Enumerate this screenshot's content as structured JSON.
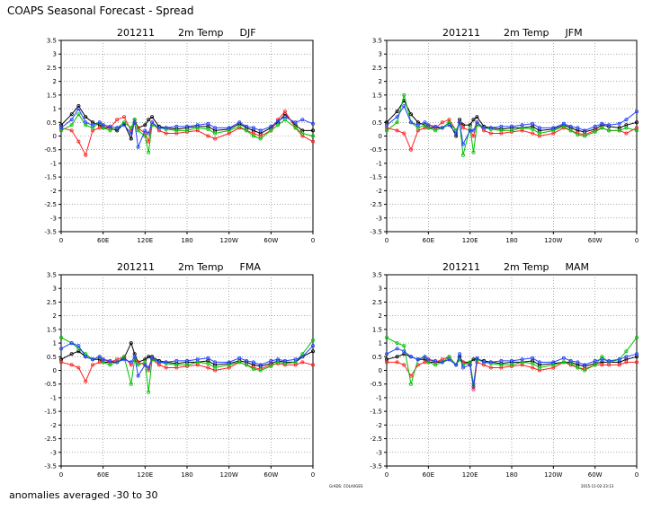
{
  "figure": {
    "title": "COAPS Seasonal Forecast - Spread",
    "footer": "anomalies averaged -30 to 30",
    "credit_left": "GrADS: COLA/IGES",
    "credit_right": "2015-11-02-23:13"
  },
  "chart_data": [
    {
      "type": "line",
      "title_parts": [
        "201211",
        "2m Temp",
        "DJF"
      ],
      "ylim": [
        -3.5,
        3.5
      ],
      "yticks": [
        "3.5",
        "3",
        "2.5",
        "2",
        "1.5",
        "1",
        "0.5",
        "0",
        "-0.5",
        "-1",
        "-1.5",
        "-2",
        "-2.5",
        "-3",
        "-3.5"
      ],
      "xlim": [
        0,
        360
      ],
      "xticks": [
        "0",
        "60E",
        "120E",
        "180",
        "120W",
        "60W",
        "0"
      ],
      "grid": true,
      "x": [
        0,
        15,
        25,
        35,
        45,
        55,
        60,
        70,
        80,
        90,
        100,
        105,
        110,
        120,
        125,
        130,
        140,
        150,
        165,
        180,
        195,
        210,
        220,
        240,
        255,
        265,
        275,
        285,
        300,
        310,
        320,
        335,
        345,
        360
      ],
      "series": [
        {
          "name": "black",
          "color": "#000000",
          "values": [
            0.4,
            0.8,
            1.1,
            0.7,
            0.5,
            0.4,
            0.3,
            0.3,
            0.2,
            0.45,
            -0.1,
            0.6,
            0.3,
            0.4,
            0.6,
            0.7,
            0.35,
            0.3,
            0.25,
            0.3,
            0.35,
            0.35,
            0.2,
            0.25,
            0.45,
            0.3,
            0.2,
            0.1,
            0.3,
            0.5,
            0.8,
            0.4,
            0.2,
            0.2
          ]
        },
        {
          "name": "red",
          "color": "#ff2020",
          "values": [
            0.3,
            0.2,
            -0.2,
            -0.7,
            0.2,
            0.3,
            0.4,
            0.3,
            0.6,
            0.7,
            0.2,
            0.5,
            0.3,
            0.1,
            -0.2,
            0.5,
            0.2,
            0.1,
            0.1,
            0.15,
            0.2,
            0.0,
            -0.1,
            0.1,
            0.3,
            0.2,
            0.1,
            0.0,
            0.2,
            0.6,
            0.9,
            0.3,
            0.0,
            -0.2
          ]
        },
        {
          "name": "green",
          "color": "#00c000",
          "values": [
            0.2,
            0.4,
            0.8,
            0.4,
            0.3,
            0.5,
            0.3,
            0.2,
            0.3,
            0.5,
            0.3,
            0.6,
            0.2,
            0.0,
            -0.6,
            0.4,
            0.3,
            0.25,
            0.2,
            0.2,
            0.3,
            0.25,
            0.1,
            0.2,
            0.35,
            0.2,
            0.0,
            -0.1,
            0.2,
            0.4,
            0.6,
            0.3,
            0.1,
            0.0
          ]
        },
        {
          "name": "blue",
          "color": "#2040ff",
          "values": [
            0.3,
            0.6,
            1.0,
            0.5,
            0.4,
            0.5,
            0.4,
            0.35,
            0.3,
            0.4,
            0.1,
            0.5,
            -0.4,
            0.2,
            0.1,
            0.5,
            0.3,
            0.3,
            0.35,
            0.35,
            0.4,
            0.45,
            0.3,
            0.3,
            0.5,
            0.35,
            0.3,
            0.2,
            0.35,
            0.55,
            0.7,
            0.5,
            0.6,
            0.45
          ]
        }
      ]
    },
    {
      "type": "line",
      "title_parts": [
        "201211",
        "2m Temp",
        "JFM"
      ],
      "ylim": [
        -3.5,
        3.5
      ],
      "yticks": [
        "3.5",
        "3",
        "2.5",
        "2",
        "1.5",
        "1",
        "0.5",
        "0",
        "-0.5",
        "-1",
        "-1.5",
        "-2",
        "-2.5",
        "-3",
        "-3.5"
      ],
      "xlim": [
        0,
        360
      ],
      "xticks": [
        "0",
        "60E",
        "120E",
        "180",
        "120W",
        "60W",
        "0"
      ],
      "grid": true,
      "x": [
        0,
        15,
        25,
        35,
        45,
        55,
        60,
        70,
        80,
        90,
        100,
        105,
        110,
        120,
        125,
        130,
        140,
        150,
        165,
        180,
        195,
        210,
        220,
        240,
        255,
        265,
        275,
        285,
        300,
        310,
        320,
        335,
        345,
        360
      ],
      "series": [
        {
          "name": "black",
          "color": "#000000",
          "values": [
            0.5,
            0.9,
            1.3,
            0.8,
            0.5,
            0.4,
            0.3,
            0.3,
            0.3,
            0.5,
            0.0,
            0.6,
            0.4,
            0.4,
            0.6,
            0.7,
            0.35,
            0.3,
            0.25,
            0.3,
            0.3,
            0.35,
            0.2,
            0.25,
            0.4,
            0.3,
            0.2,
            0.15,
            0.25,
            0.4,
            0.35,
            0.3,
            0.4,
            0.5
          ]
        },
        {
          "name": "red",
          "color": "#ff2020",
          "values": [
            0.3,
            0.2,
            0.1,
            -0.5,
            0.2,
            0.3,
            0.4,
            0.3,
            0.5,
            0.6,
            0.2,
            0.5,
            0.3,
            0.2,
            0.0,
            0.5,
            0.2,
            0.1,
            0.1,
            0.15,
            0.2,
            0.1,
            0.0,
            0.1,
            0.3,
            0.2,
            0.1,
            0.05,
            0.2,
            0.3,
            0.2,
            0.2,
            0.1,
            0.3
          ]
        },
        {
          "name": "green",
          "color": "#00c000",
          "values": [
            0.2,
            0.5,
            1.5,
            0.5,
            0.3,
            0.4,
            0.3,
            0.2,
            0.3,
            0.5,
            0.2,
            0.5,
            -0.7,
            0.3,
            -0.6,
            0.4,
            0.3,
            0.25,
            0.2,
            0.2,
            0.3,
            0.25,
            0.1,
            0.2,
            0.35,
            0.2,
            0.05,
            0.0,
            0.15,
            0.3,
            0.2,
            0.2,
            0.3,
            0.2
          ]
        },
        {
          "name": "blue",
          "color": "#2040ff",
          "values": [
            0.4,
            0.7,
            1.1,
            0.5,
            0.4,
            0.5,
            0.4,
            0.35,
            0.3,
            0.4,
            0.1,
            0.5,
            -0.3,
            0.2,
            0.2,
            0.5,
            0.3,
            0.3,
            0.35,
            0.35,
            0.4,
            0.45,
            0.3,
            0.3,
            0.45,
            0.35,
            0.3,
            0.2,
            0.35,
            0.45,
            0.4,
            0.45,
            0.6,
            0.9
          ]
        }
      ]
    },
    {
      "type": "line",
      "title_parts": [
        "201211",
        "2m Temp",
        "FMA"
      ],
      "ylim": [
        -3.5,
        3.5
      ],
      "yticks": [
        "3.5",
        "3",
        "2.5",
        "2",
        "1.5",
        "1",
        "0.5",
        "0",
        "-0.5",
        "-1",
        "-1.5",
        "-2",
        "-2.5",
        "-3",
        "-3.5"
      ],
      "xlim": [
        0,
        360
      ],
      "xticks": [
        "0",
        "60E",
        "120E",
        "180",
        "120W",
        "60W",
        "0"
      ],
      "grid": true,
      "x": [
        0,
        15,
        25,
        35,
        45,
        55,
        60,
        70,
        80,
        90,
        100,
        105,
        110,
        120,
        125,
        130,
        140,
        150,
        165,
        180,
        195,
        210,
        220,
        240,
        255,
        265,
        275,
        285,
        300,
        310,
        320,
        335,
        345,
        360
      ],
      "series": [
        {
          "name": "black",
          "color": "#000000",
          "values": [
            0.4,
            0.6,
            0.7,
            0.5,
            0.4,
            0.4,
            0.3,
            0.3,
            0.3,
            0.45,
            1.0,
            0.6,
            0.3,
            0.4,
            0.5,
            0.5,
            0.35,
            0.3,
            0.25,
            0.3,
            0.3,
            0.35,
            0.2,
            0.25,
            0.35,
            0.3,
            0.2,
            0.15,
            0.25,
            0.35,
            0.3,
            0.3,
            0.5,
            0.7
          ]
        },
        {
          "name": "red",
          "color": "#ff2020",
          "values": [
            0.3,
            0.2,
            0.1,
            -0.4,
            0.2,
            0.3,
            0.4,
            0.3,
            0.4,
            0.5,
            0.2,
            0.4,
            0.3,
            0.2,
            0.0,
            0.4,
            0.2,
            0.1,
            0.1,
            0.15,
            0.2,
            0.1,
            0.0,
            0.1,
            0.3,
            0.2,
            0.1,
            0.05,
            0.2,
            0.25,
            0.2,
            0.2,
            0.3,
            0.2
          ]
        },
        {
          "name": "green",
          "color": "#00c000",
          "values": [
            1.2,
            1.0,
            0.8,
            0.6,
            0.4,
            0.5,
            0.3,
            0.2,
            0.3,
            0.5,
            -0.5,
            0.4,
            0.2,
            0.3,
            -0.8,
            0.4,
            0.3,
            0.25,
            0.2,
            0.2,
            0.3,
            0.25,
            0.1,
            0.2,
            0.3,
            0.2,
            0.05,
            0.0,
            0.15,
            0.3,
            0.25,
            0.3,
            0.6,
            1.1
          ]
        },
        {
          "name": "blue",
          "color": "#2040ff",
          "values": [
            0.8,
            1.0,
            0.9,
            0.5,
            0.4,
            0.5,
            0.4,
            0.35,
            0.3,
            0.4,
            0.3,
            0.5,
            -0.2,
            0.2,
            0.1,
            0.45,
            0.3,
            0.3,
            0.35,
            0.35,
            0.4,
            0.45,
            0.3,
            0.3,
            0.45,
            0.35,
            0.3,
            0.2,
            0.35,
            0.4,
            0.35,
            0.4,
            0.5,
            0.9
          ]
        }
      ]
    },
    {
      "type": "line",
      "title_parts": [
        "201211",
        "2m Temp",
        "MAM"
      ],
      "ylim": [
        -3.5,
        3.5
      ],
      "yticks": [
        "3.5",
        "3",
        "2.5",
        "2",
        "1.5",
        "1",
        "0.5",
        "0",
        "-0.5",
        "-1",
        "-1.5",
        "-2",
        "-2.5",
        "-3",
        "-3.5"
      ],
      "xlim": [
        0,
        360
      ],
      "xticks": [
        "0",
        "60E",
        "120E",
        "180",
        "120W",
        "60W",
        "0"
      ],
      "grid": true,
      "x": [
        0,
        15,
        25,
        35,
        45,
        55,
        60,
        70,
        80,
        90,
        100,
        105,
        110,
        120,
        125,
        130,
        140,
        150,
        165,
        180,
        195,
        210,
        220,
        240,
        255,
        265,
        275,
        285,
        300,
        310,
        320,
        335,
        345,
        360
      ],
      "series": [
        {
          "name": "black",
          "color": "#000000",
          "values": [
            0.4,
            0.5,
            0.6,
            0.5,
            0.4,
            0.4,
            0.3,
            0.3,
            0.3,
            0.4,
            0.2,
            0.5,
            0.3,
            0.3,
            0.4,
            0.4,
            0.35,
            0.3,
            0.25,
            0.3,
            0.3,
            0.35,
            0.2,
            0.25,
            0.3,
            0.3,
            0.2,
            0.15,
            0.25,
            0.3,
            0.3,
            0.3,
            0.4,
            0.5
          ]
        },
        {
          "name": "red",
          "color": "#ff2020",
          "values": [
            0.3,
            0.3,
            0.2,
            -0.2,
            0.2,
            0.3,
            0.4,
            0.3,
            0.4,
            0.5,
            0.2,
            0.4,
            0.3,
            0.2,
            -0.7,
            0.3,
            0.2,
            0.1,
            0.1,
            0.15,
            0.2,
            0.1,
            0.0,
            0.1,
            0.3,
            0.2,
            0.1,
            0.05,
            0.2,
            0.2,
            0.2,
            0.2,
            0.3,
            0.3
          ]
        },
        {
          "name": "green",
          "color": "#00c000",
          "values": [
            1.2,
            1.0,
            0.9,
            -0.5,
            0.4,
            0.5,
            0.3,
            0.2,
            0.3,
            0.5,
            0.2,
            0.4,
            0.2,
            0.3,
            -0.5,
            0.4,
            0.3,
            0.25,
            0.2,
            0.2,
            0.3,
            0.25,
            0.1,
            0.2,
            0.3,
            0.25,
            0.1,
            0.0,
            0.2,
            0.5,
            0.3,
            0.4,
            0.7,
            1.2
          ]
        },
        {
          "name": "blue",
          "color": "#2040ff",
          "values": [
            0.6,
            0.8,
            0.7,
            0.5,
            0.4,
            0.5,
            0.4,
            0.35,
            0.3,
            0.4,
            0.2,
            0.6,
            0.1,
            0.2,
            -0.6,
            0.45,
            0.3,
            0.3,
            0.35,
            0.35,
            0.4,
            0.45,
            0.3,
            0.3,
            0.45,
            0.35,
            0.3,
            0.2,
            0.35,
            0.4,
            0.35,
            0.4,
            0.5,
            0.6
          ]
        }
      ]
    }
  ]
}
